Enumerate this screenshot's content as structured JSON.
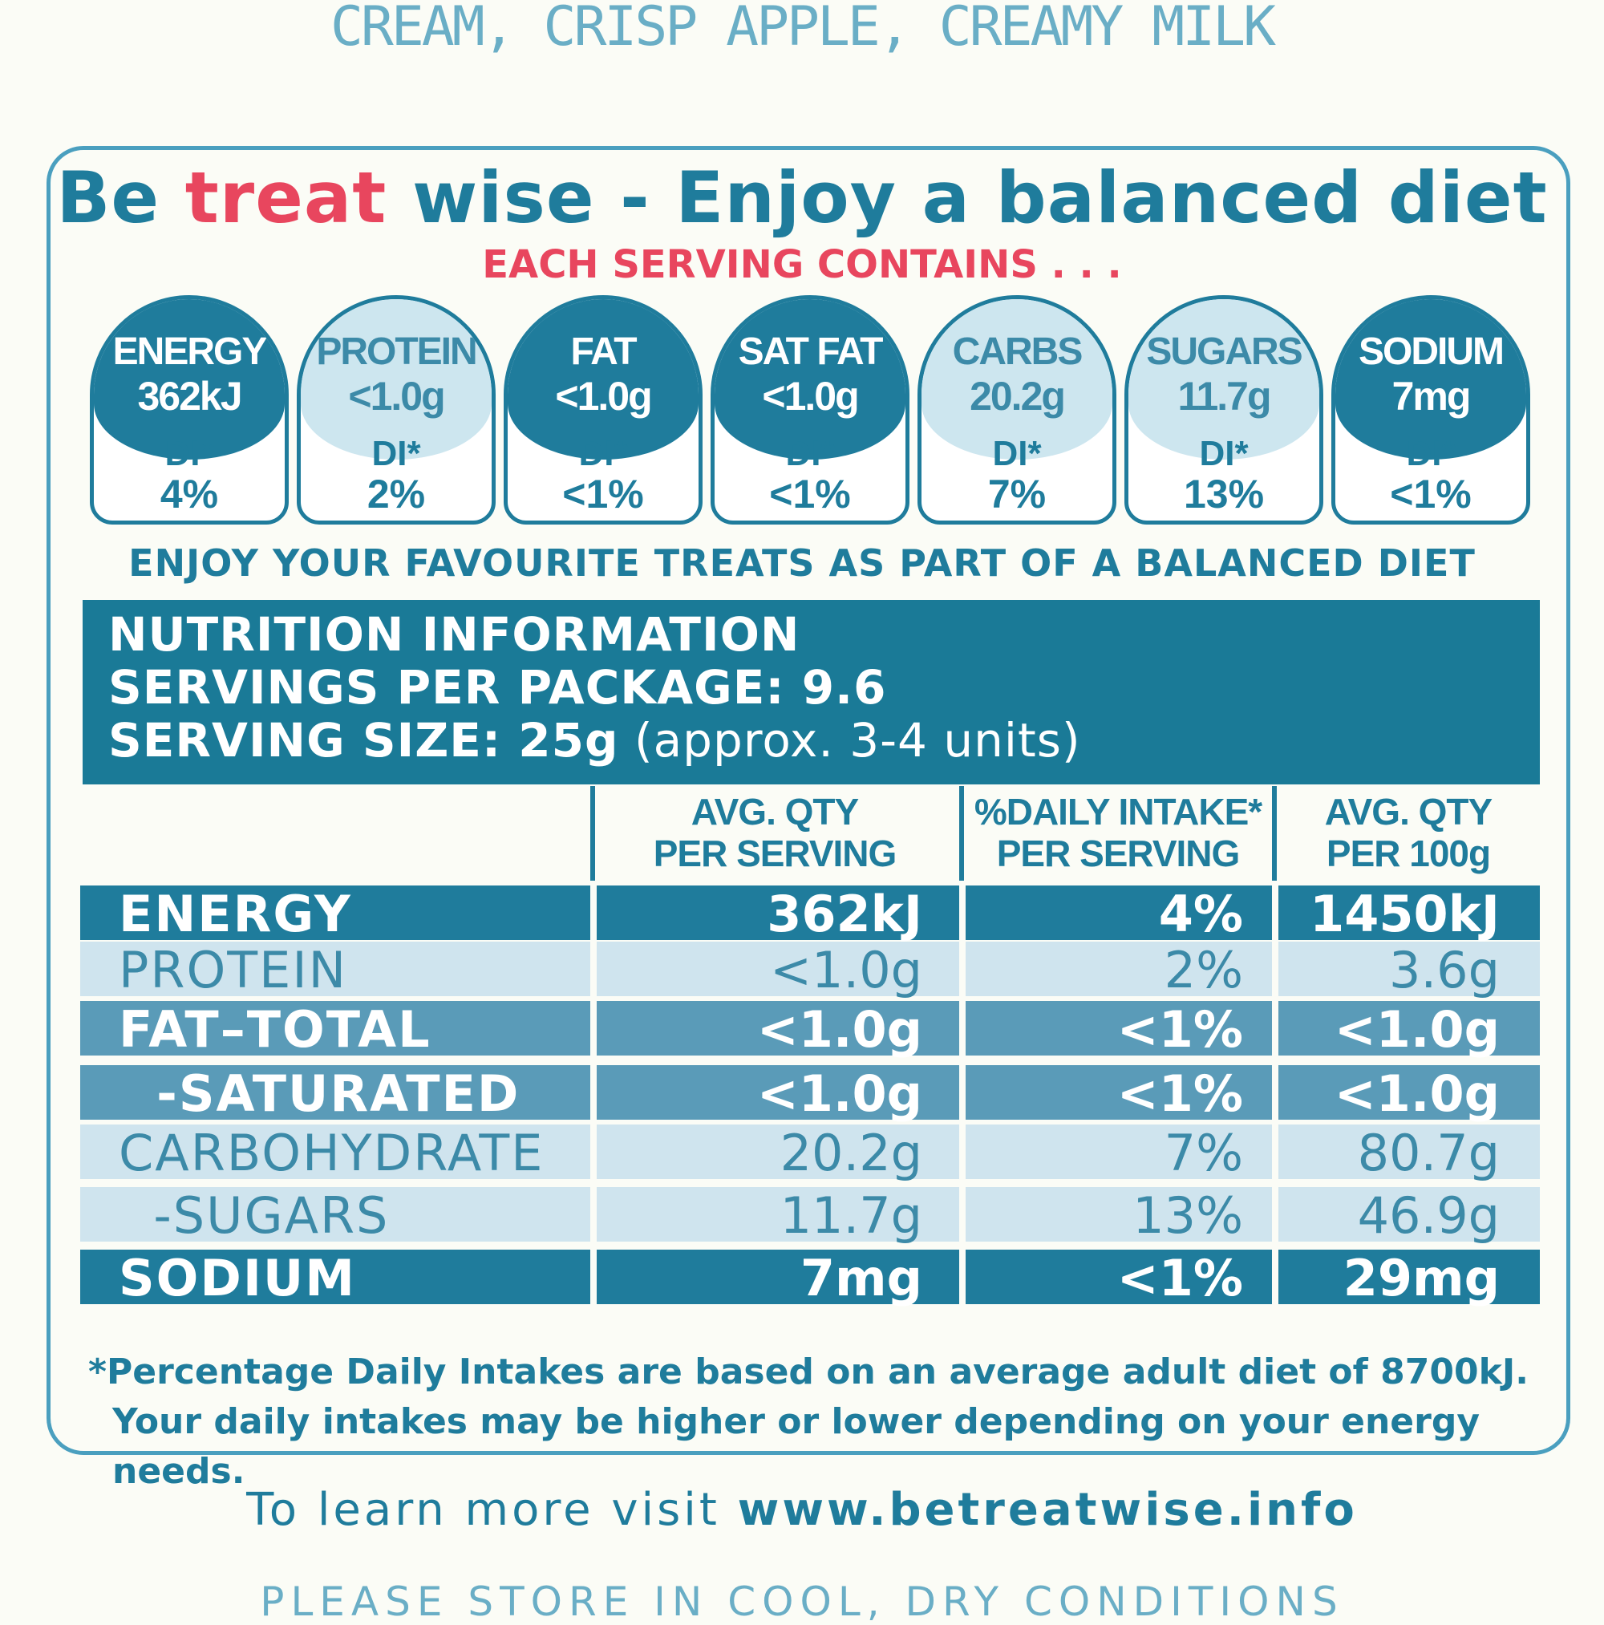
{
  "top_text": "CREAM, CRISP APPLE, CREAMY MILK",
  "headline": {
    "part1": "Be ",
    "part2": "treat",
    "part3": " wise - Enjoy a balanced diet"
  },
  "subline": "EACH SERVING CONTAINS . . .",
  "badges": [
    {
      "name": "ENERGY",
      "value": "362kJ",
      "di_label": "DI*",
      "di": "4%",
      "style": "dark"
    },
    {
      "name": "PROTEIN",
      "value": "<1.0g",
      "di_label": "DI*",
      "di": "2%",
      "style": "light"
    },
    {
      "name": "FAT",
      "value": "<1.0g",
      "di_label": "DI*",
      "di": "<1%",
      "style": "dark"
    },
    {
      "name": "SAT FAT",
      "value": "<1.0g",
      "di_label": "DI*",
      "di": "<1%",
      "style": "dark"
    },
    {
      "name": "CARBS",
      "value": "20.2g",
      "di_label": "DI*",
      "di": "7%",
      "style": "light"
    },
    {
      "name": "SUGARS",
      "value": "11.7g",
      "di_label": "DI*",
      "di": "13%",
      "style": "light"
    },
    {
      "name": "SODIUM",
      "value": "7mg",
      "di_label": "DI*",
      "di": "<1%",
      "style": "dark"
    }
  ],
  "enjoy_text": "ENJOY YOUR FAVOURITE TREATS AS PART OF A BALANCED DIET",
  "nutrition": {
    "title": "NUTRITION INFORMATION",
    "servings_label": "SERVINGS PER PACKAGE: ",
    "servings_value": "9.6",
    "size_label": "SERVING SIZE: 25g",
    "size_note": " (approx. 3-4 units)"
  },
  "table": {
    "headers": {
      "per_serving": [
        "AVG. QTY",
        "PER SERVING"
      ],
      "daily_intake": [
        "%DAILY INTAKE*",
        "PER SERVING"
      ],
      "per_100g": [
        "AVG. QTY",
        "PER 100g"
      ]
    },
    "rows": [
      {
        "name": "ENERGY",
        "per_serving": "362kJ",
        "daily_intake": "4%",
        "per_100g": "1450kJ",
        "style": "dark"
      },
      {
        "name": "PROTEIN",
        "per_serving": "<1.0g",
        "daily_intake": "2%",
        "per_100g": "3.6g",
        "style": "light"
      },
      {
        "name": "FAT–TOTAL",
        "per_serving": "<1.0g",
        "daily_intake": "<1%",
        "per_100g": "<1.0g",
        "style": "mid"
      },
      {
        "name": "  -SATURATED",
        "per_serving": "<1.0g",
        "daily_intake": "<1%",
        "per_100g": "<1.0g",
        "style": "mid"
      },
      {
        "name": "CARBOHYDRATE",
        "per_serving": "20.2g",
        "daily_intake": "7%",
        "per_100g": "80.7g",
        "style": "light"
      },
      {
        "name": "  -SUGARS",
        "per_serving": "11.7g",
        "daily_intake": "13%",
        "per_100g": "46.9g",
        "style": "light"
      },
      {
        "name": "SODIUM",
        "per_serving": "7mg",
        "daily_intake": "<1%",
        "per_100g": "29mg",
        "style": "dark"
      }
    ]
  },
  "footnote": {
    "line1": "*Percentage Daily Intakes are based on an average adult diet of 8700kJ.",
    "line2": "Your daily intakes may be higher or lower depending on your energy needs."
  },
  "learn": {
    "prefix": "To learn more visit ",
    "url": "www.betreatwise.info"
  },
  "store_text": "PLEASE STORE IN COOL, DRY CONDITIONS",
  "colors": {
    "primary": "#1f7c9c",
    "accent": "#e8465e",
    "light": "#cfe4ee",
    "mid": "#5a9bb8",
    "background": "#fbfcf6"
  }
}
